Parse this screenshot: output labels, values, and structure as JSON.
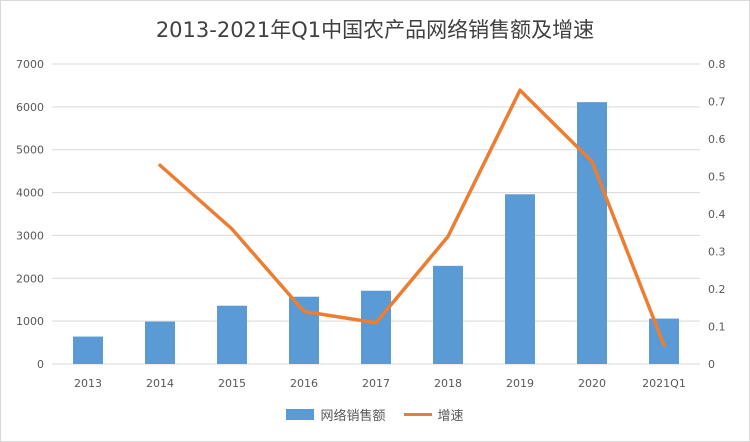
{
  "chart_data": {
    "type": "bar",
    "title": "2013-2021年Q1中国农产品网络销售额及增速",
    "categories": [
      "2013",
      "2014",
      "2015",
      "2016",
      "2017",
      "2018",
      "2019",
      "2020",
      "2021Q1"
    ],
    "series": [
      {
        "name": "网络销售额",
        "type": "bar",
        "axis": "left",
        "color": "#5b9bd5",
        "values": [
          640,
          990,
          1360,
          1570,
          1710,
          2290,
          3960,
          6110,
          1060
        ]
      },
      {
        "name": "增速",
        "type": "line",
        "axis": "right",
        "color": "#ed7d31",
        "values": [
          null,
          0.53,
          0.36,
          0.14,
          0.11,
          0.34,
          0.73,
          0.54,
          0.05
        ]
      }
    ],
    "ylim": [
      0,
      7000
    ],
    "yticks": [
      0,
      1000,
      2000,
      3000,
      4000,
      5000,
      6000,
      7000
    ],
    "y2lim": [
      0,
      0.8
    ],
    "y2ticks": [
      "0",
      "0.1",
      "0.2",
      "0.3",
      "0.4",
      "0.5",
      "0.6",
      "0.7",
      "0.8"
    ],
    "grid": true,
    "legend_position": "bottom"
  }
}
